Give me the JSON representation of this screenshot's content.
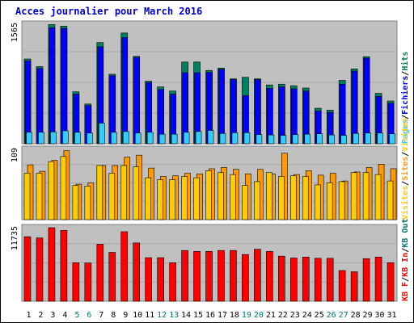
{
  "chart_data": {
    "type": "bar",
    "title": "Acces journalier pour March 2016",
    "days": [
      "1",
      "2",
      "3",
      "4",
      "5",
      "6",
      "7",
      "8",
      "9",
      "10",
      "11",
      "12",
      "13",
      "14",
      "15",
      "16",
      "17",
      "18",
      "19",
      "20",
      "21",
      "22",
      "23",
      "24",
      "25",
      "26",
      "27",
      "28",
      "29",
      "30",
      "31"
    ],
    "weekend_days": [
      5,
      6,
      12,
      13,
      19,
      20,
      26,
      27
    ],
    "colors": {
      "title": "#0000cc",
      "day_weekday": "#000000",
      "day_weekend": "#007777",
      "panel_bg": "#c0c0c0",
      "pages": "#33ccff",
      "fichiers": "#0000ff",
      "hits": "#008060",
      "visites": "#ffcc00",
      "sites": "#ff9900",
      "kb_in": "#ff0000",
      "kb_out": "#007777",
      "kb_f": "#ff0000"
    },
    "panel1": {
      "max_label": "1565",
      "ymax": 1565,
      "legend": [
        "Pages",
        "Fichiers",
        "Hits"
      ],
      "hits": [
        1110,
        1010,
        1560,
        1540,
        680,
        520,
        1325,
        910,
        1450,
        1145,
        820,
        745,
        690,
        1070,
        1070,
        960,
        990,
        850,
        870,
        850,
        770,
        780,
        760,
        730,
        465,
        440,
        830,
        980,
        1140,
        660,
        560
      ],
      "fichiers": [
        1085,
        985,
        1520,
        1510,
        650,
        500,
        1270,
        890,
        1390,
        1130,
        800,
        710,
        650,
        930,
        930,
        935,
        975,
        840,
        630,
        840,
        725,
        745,
        720,
        690,
        430,
        410,
        780,
        950,
        1120,
        620,
        530
      ],
      "pages": [
        150,
        150,
        155,
        170,
        150,
        140,
        270,
        150,
        160,
        140,
        150,
        125,
        125,
        150,
        160,
        175,
        135,
        145,
        145,
        120,
        115,
        110,
        120,
        125,
        130,
        115,
        110,
        135,
        140,
        140,
        130
      ]
    },
    "panel2": {
      "max_label": "109",
      "ymax": 109,
      "legend": [
        "Visites",
        "Sites",
        "Visites"
      ],
      "sites": [
        85,
        75,
        92,
        107,
        55,
        57,
        84,
        84,
        97,
        100,
        80,
        67,
        68,
        72,
        71,
        79,
        81,
        78,
        71,
        78,
        71,
        103,
        70,
        76,
        69,
        72,
        60,
        74,
        81,
        86,
        79
      ],
      "visites": [
        72,
        72,
        90,
        98,
        53,
        52,
        84,
        72,
        84,
        82,
        65,
        62,
        62,
        67,
        65,
        76,
        73,
        70,
        53,
        59,
        73,
        67,
        68,
        67,
        54,
        57,
        59,
        73,
        73,
        70,
        60
      ]
    },
    "panel3": {
      "max_label": "11735",
      "ymax": 11735,
      "legend": [
        "KB F",
        "KB In",
        "KB Out"
      ],
      "kb_in": [
        10300,
        10100,
        11735,
        11300,
        6150,
        6100,
        9100,
        7800,
        11100,
        9300,
        6950,
        6950,
        6150,
        8100,
        7950,
        7950,
        8100,
        8100,
        7450,
        8300,
        7950,
        7200,
        6900,
        7050,
        6850,
        6850,
        4900,
        4700,
        6800,
        7050,
        6150
      ],
      "kb_f": [
        10300,
        10100,
        11735,
        11300,
        6150,
        6100,
        9100,
        7800,
        11100,
        9300,
        6950,
        6950,
        6150,
        8100,
        7950,
        7950,
        8100,
        8100,
        7450,
        8300,
        7950,
        7200,
        6900,
        7050,
        6850,
        6850,
        4900,
        4700,
        6800,
        7050,
        6150
      ]
    }
  }
}
